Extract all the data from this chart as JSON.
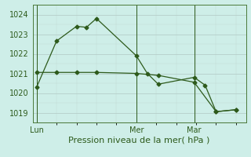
{
  "xlabel": "Pression niveau de la mer( hPa )",
  "bg_color": "#ceeee8",
  "plot_bg_color": "#ceeee8",
  "line_color": "#2d5a1b",
  "ylim": [
    1018.5,
    1024.5
  ],
  "yticks": [
    1019,
    1020,
    1021,
    1022,
    1023,
    1024
  ],
  "day_labels": [
    "Lun",
    "Mer",
    "Mar"
  ],
  "day_positions": [
    0.0,
    0.5,
    0.79
  ],
  "series1_x": [
    0.0,
    0.1,
    0.2,
    0.25,
    0.3,
    0.5,
    0.555,
    0.61,
    0.79,
    0.845,
    0.9,
    1.0
  ],
  "series1_y": [
    1020.3,
    1022.65,
    1023.4,
    1023.35,
    1023.8,
    1021.9,
    1021.0,
    1020.45,
    1020.8,
    1020.4,
    1019.05,
    1019.15
  ],
  "series2_x": [
    0.0,
    0.1,
    0.2,
    0.3,
    0.5,
    0.61,
    0.79,
    0.9,
    1.0
  ],
  "series2_y": [
    1021.05,
    1021.05,
    1021.05,
    1021.05,
    1021.0,
    1020.9,
    1020.55,
    1019.05,
    1019.15
  ],
  "vline_positions": [
    0.0,
    0.5,
    0.79
  ],
  "vline_color": "#2d5a1b",
  "tick_label_color": "#2d5a1b",
  "xlabel_color": "#2d5a1b",
  "xlabel_fontsize": 8,
  "tick_fontsize": 7,
  "marker_size": 2.5,
  "grid_major_color": "#b0c8c4",
  "grid_minor_color": "#c0d8d4"
}
